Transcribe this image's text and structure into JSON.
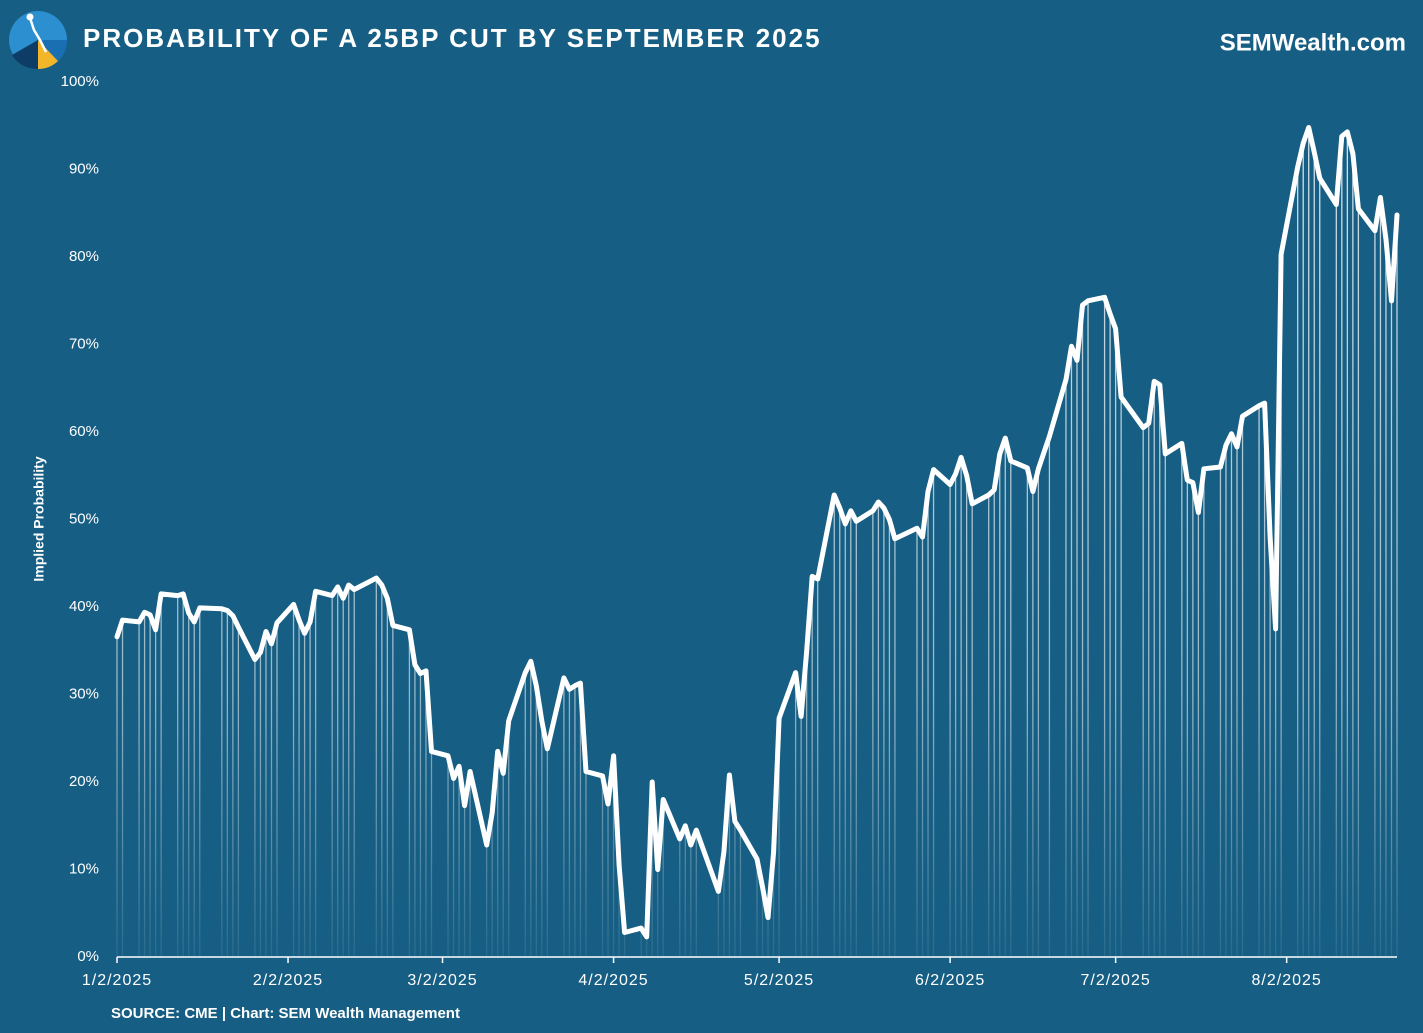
{
  "chart_data": {
    "type": "line",
    "title": "PROBABILITY OF A 25BP CUT BY SEPTEMBER 2025",
    "brand": "SEMWealth.com",
    "source": "SOURCE: CME | Chart: SEM Wealth Management",
    "y_label": "Implied Probability",
    "color": "#ffffff",
    "background": "#165e83",
    "drop_lines": true,
    "x": [
      "1/2/2025",
      "1/3/2025",
      "1/6/2025",
      "1/7/2025",
      "1/8/2025",
      "1/9/2025",
      "1/10/2025",
      "1/13/2025",
      "1/14/2025",
      "1/15/2025",
      "1/16/2025",
      "1/17/2025",
      "1/21/2025",
      "1/22/2025",
      "1/23/2025",
      "1/24/2025",
      "1/27/2025",
      "1/28/2025",
      "1/29/2025",
      "1/30/2025",
      "1/31/2025",
      "2/3/2025",
      "2/4/2025",
      "2/5/2025",
      "2/6/2025",
      "2/7/2025",
      "2/10/2025",
      "2/11/2025",
      "2/12/2025",
      "2/13/2025",
      "2/14/2025",
      "2/18/2025",
      "2/19/2025",
      "2/20/2025",
      "2/21/2025",
      "2/24/2025",
      "2/25/2025",
      "2/26/2025",
      "2/27/2025",
      "2/28/2025",
      "3/3/2025",
      "3/4/2025",
      "3/5/2025",
      "3/6/2025",
      "3/7/2025",
      "3/10/2025",
      "3/11/2025",
      "3/12/2025",
      "3/13/2025",
      "3/14/2025",
      "3/17/2025",
      "3/18/2025",
      "3/19/2025",
      "3/20/2025",
      "3/21/2025",
      "3/24/2025",
      "3/25/2025",
      "3/26/2025",
      "3/27/2025",
      "3/28/2025",
      "3/31/2025",
      "4/1/2025",
      "4/2/2025",
      "4/3/2025",
      "4/4/2025",
      "4/7/2025",
      "4/8/2025",
      "4/9/2025",
      "4/10/2025",
      "4/11/2025",
      "4/14/2025",
      "4/15/2025",
      "4/16/2025",
      "4/17/2025",
      "4/21/2025",
      "4/22/2025",
      "4/23/2025",
      "4/24/2025",
      "4/25/2025",
      "4/28/2025",
      "4/29/2025",
      "4/30/2025",
      "5/1/2025",
      "5/2/2025",
      "5/5/2025",
      "5/6/2025",
      "5/7/2025",
      "5/8/2025",
      "5/9/2025",
      "5/12/2025",
      "5/13/2025",
      "5/14/2025",
      "5/15/2025",
      "5/16/2025",
      "5/19/2025",
      "5/20/2025",
      "5/21/2025",
      "5/22/2025",
      "5/23/2025",
      "5/27/2025",
      "5/28/2025",
      "5/29/2025",
      "5/30/2025",
      "6/2/2025",
      "6/3/2025",
      "6/4/2025",
      "6/5/2025",
      "6/6/2025",
      "6/9/2025",
      "6/10/2025",
      "6/11/2025",
      "6/12/2025",
      "6/13/2025",
      "6/16/2025",
      "6/17/2025",
      "6/18/2025",
      "6/20/2025",
      "6/23/2025",
      "6/24/2025",
      "6/25/2025",
      "6/26/2025",
      "6/27/2025",
      "6/30/2025",
      "7/1/2025",
      "7/2/2025",
      "7/3/2025",
      "7/7/2025",
      "7/8/2025",
      "7/9/2025",
      "7/10/2025",
      "7/11/2025",
      "7/14/2025",
      "7/15/2025",
      "7/16/2025",
      "7/17/2025",
      "7/18/2025",
      "7/21/2025",
      "7/22/2025",
      "7/23/2025",
      "7/24/2025",
      "7/25/2025",
      "7/28/2025",
      "7/29/2025",
      "7/30/2025",
      "7/31/2025",
      "8/1/2025",
      "8/4/2025",
      "8/5/2025",
      "8/6/2025",
      "8/7/2025",
      "8/8/2025",
      "8/11/2025",
      "8/12/2025",
      "8/13/2025",
      "8/14/2025",
      "8/15/2025",
      "8/18/2025",
      "8/19/2025",
      "8/20/2025",
      "8/21/2025",
      "8/22/2025"
    ],
    "values": [
      36.6,
      38.5,
      38.3,
      39.4,
      39.1,
      37.4,
      41.5,
      41.3,
      41.5,
      39.3,
      38.3,
      39.9,
      39.8,
      39.6,
      39.0,
      37.7,
      34.0,
      34.8,
      37.2,
      35.8,
      38.2,
      40.3,
      38.5,
      37.0,
      38.3,
      41.8,
      41.3,
      42.3,
      41.0,
      42.5,
      42.0,
      43.3,
      42.5,
      41.0,
      37.9,
      37.4,
      33.4,
      32.4,
      32.7,
      23.5,
      23.0,
      20.4,
      21.8,
      17.3,
      21.2,
      12.8,
      16.5,
      23.5,
      21.0,
      27.0,
      32.5,
      33.8,
      31.0,
      27.0,
      23.8,
      31.9,
      30.6,
      31.0,
      31.3,
      21.2,
      20.7,
      17.5,
      23.0,
      10.5,
      2.8,
      3.3,
      2.3,
      20.0,
      10.0,
      18.0,
      13.5,
      15.0,
      12.8,
      14.5,
      7.5,
      12.0,
      20.8,
      15.5,
      14.5,
      11.2,
      8.0,
      4.5,
      12.0,
      27.3,
      32.5,
      27.5,
      35.0,
      43.5,
      43.2,
      52.8,
      51.3,
      49.5,
      51.0,
      49.8,
      51.0,
      52.0,
      51.3,
      50.0,
      47.8,
      49.0,
      48.0,
      53.2,
      55.7,
      54.0,
      55.2,
      57.1,
      55.0,
      51.8,
      52.8,
      53.4,
      57.5,
      59.3,
      56.7,
      55.9,
      53.2,
      55.8,
      59.5,
      66.0,
      69.8,
      68.2,
      74.5,
      75.0,
      75.4,
      73.5,
      71.8,
      64.0,
      60.5,
      61.0,
      65.8,
      65.4,
      57.5,
      58.7,
      54.5,
      54.2,
      50.8,
      55.8,
      56.0,
      58.5,
      59.8,
      58.3,
      61.8,
      63.0,
      63.3,
      48.0,
      37.5,
      80.3,
      90.3,
      93.0,
      94.8,
      92.0,
      89.0,
      86.0,
      93.8,
      94.3,
      91.8,
      85.5,
      83.0,
      86.8,
      82.0,
      75.0,
      84.8
    ],
    "xlim": [
      "1/2/2025",
      "8/22/2025"
    ],
    "xticks": [
      "1/2/2025",
      "2/2/2025",
      "3/2/2025",
      "4/2/2025",
      "5/2/2025",
      "6/2/2025",
      "7/2/2025",
      "8/2/2025"
    ],
    "ylim": [
      0,
      100
    ],
    "yticks": [
      {
        "value": 0,
        "label": "0%"
      },
      {
        "value": 10,
        "label": "10%"
      },
      {
        "value": 20,
        "label": "20%"
      },
      {
        "value": 30,
        "label": "30%"
      },
      {
        "value": 40,
        "label": "40%"
      },
      {
        "value": 50,
        "label": "50%"
      },
      {
        "value": 60,
        "label": "60%"
      },
      {
        "value": 70,
        "label": "70%"
      },
      {
        "value": 80,
        "label": "80%"
      },
      {
        "value": 90,
        "label": "90%"
      },
      {
        "value": 100,
        "label": "100%"
      }
    ]
  }
}
